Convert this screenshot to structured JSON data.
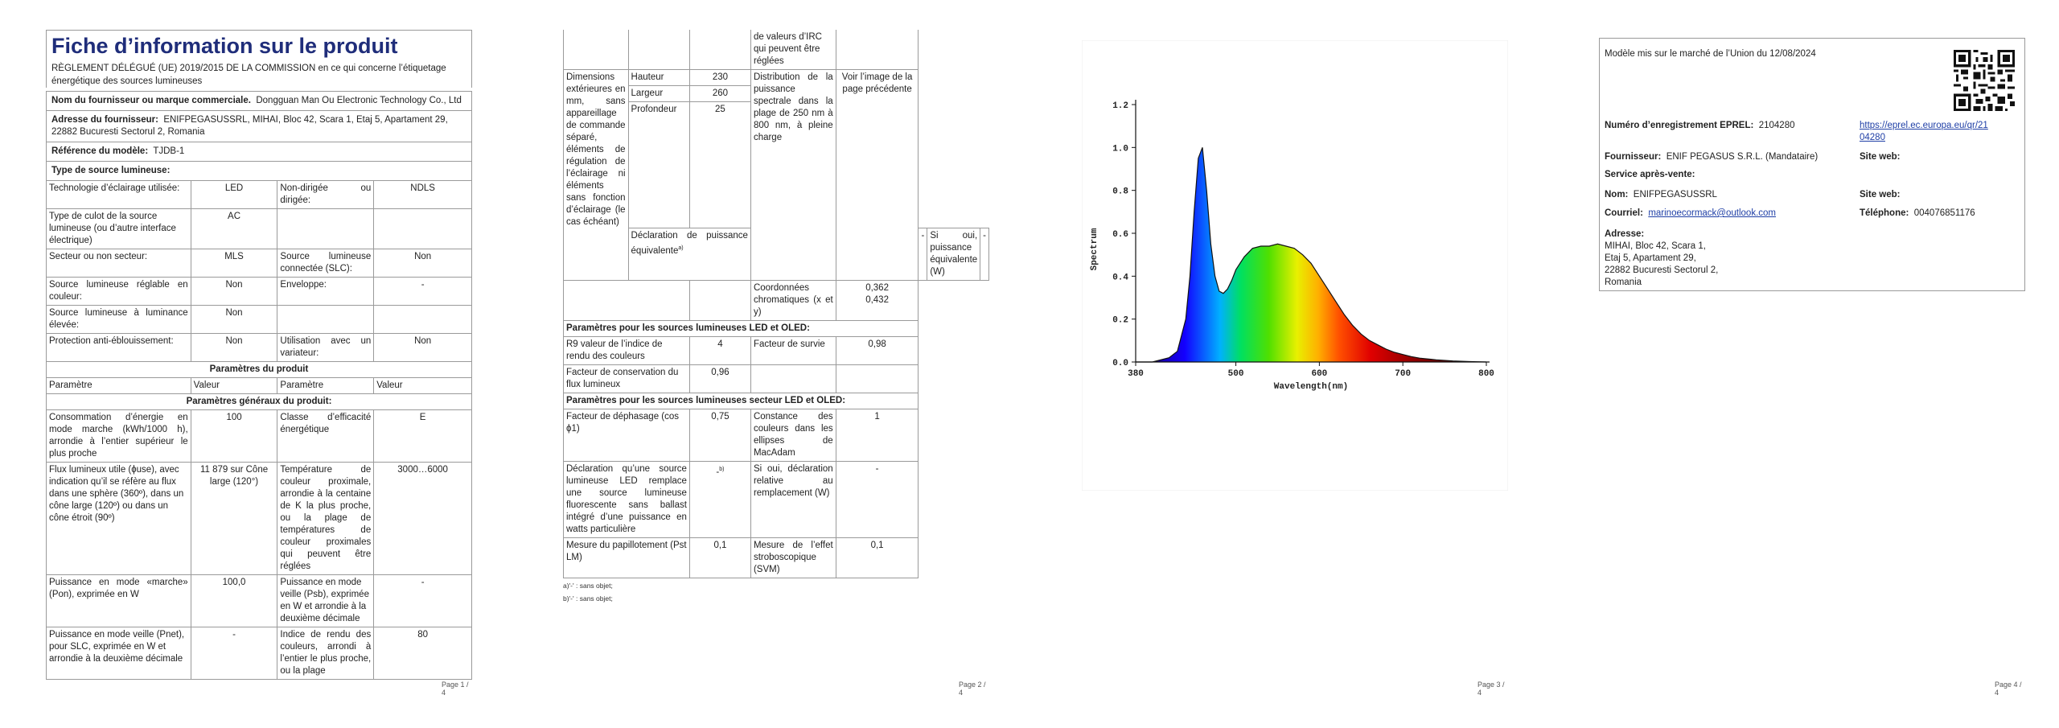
{
  "page1": {
    "title": "Fiche d’information sur le produit",
    "regulation": "RÈGLEMENT DÉLÉGUÉ (UE) 2019/2015 DE LA COMMISSION en ce qui concerne l’étiquetage énergétique des sources lumineuses",
    "supplier_label": "Nom du fournisseur ou marque commerciale.",
    "supplier_value": "Dongguan Man Ou Electronic Technology Co., Ltd",
    "address_label": "Adresse du fournisseur:",
    "address_value": "ENIFPEGASUSSRL, MIHAI, Bloc 42, Scara 1, Etaj 5, Apartament 29, 22882 Bucuresti Sectorul 2, Romania",
    "model_label": "Référence du modèle:",
    "model_value": "TJDB-1",
    "type_label": "Type de source lumineuse:",
    "rows_a": [
      [
        "Technologie d’éclairage utilisée:",
        "LED",
        "Non-dirigée ou dirigée:",
        "NDLS"
      ],
      [
        "Type de culot de la source lumineuse (ou d’autre interface électrique)",
        "AC",
        "",
        ""
      ],
      [
        "Secteur ou non secteur:",
        "MLS",
        "Source lumineuse connectée (SLC):",
        "Non"
      ],
      [
        "Source lumineuse réglable en couleur:",
        "Non",
        "Enveloppe:",
        "-"
      ],
      [
        "Source lumineuse à luminance élevée:",
        "Non",
        "",
        ""
      ],
      [
        "Protection anti-éblouissement:",
        "Non",
        "Utilisation avec un variateur:",
        "Non"
      ]
    ],
    "section_product": "Paramètres du produit",
    "col_headers": [
      "Paramètre",
      "Valeur",
      "Paramètre",
      "Valeur"
    ],
    "section_general": "Paramètres généraux du produit:",
    "rows_b": [
      [
        "Consommation d’énergie en mode marche (kWh/1000 h), arrondie à l’entier supérieur le plus proche",
        "100",
        "Classe d’efficacité énergétique",
        "E"
      ],
      [
        "Flux lumineux utile (ɸuse), avec indication qu’il se réfère au flux dans une sphère (360º), dans un cône large (120º) ou dans un cône étroit (90º)",
        "11 879 sur Cône large (120°)",
        "Température de couleur proximale, arrondie à la centaine de K la plus proche, ou la plage de températures de couleur proximales qui peuvent être réglées",
        "3000…6000"
      ],
      [
        "Puissance en mode «marche» (Pon), exprimée en W",
        "100,0",
        "Puissance en mode veille (Psb), exprimée en W et arrondie à la deuxième décimale",
        "-"
      ],
      [
        "Puissance en mode veille (Pnet), pour SLC, exprimée en W et arrondie à la deuxième décimale",
        "-",
        "Indice de rendu des couleurs, arrondi à l’entier le plus proche, ou la plage",
        "80"
      ]
    ],
    "page_number": "Page 1 / 4"
  },
  "page2": {
    "cont_text": "de valeurs d’IRC qui peuvent être réglées",
    "dims_label": "Dimensions extérieures en mm, sans appareillage de commande séparé, éléments de régulation de l’éclairage ni éléments sans fonction d’éclairage (le cas échéant)",
    "dims": [
      [
        "Hauteur",
        "230"
      ],
      [
        "Largeur",
        "260"
      ],
      [
        "Profondeur",
        "25"
      ]
    ],
    "spectral_label": "Distribution de la puissance spectrale dans la plage de 250 nm à 800 nm, à pleine charge",
    "spectral_value": "Voir l’image de la page précédente",
    "equiv_label": "Déclaration de puissance équivalente",
    "equiv_sup": "a)",
    "equiv_value": "-",
    "equiv_w_label": "Si oui, puissance équivalente (W)",
    "equiv_w_value": "-",
    "chroma_label": "Coordonnées chromatiques (x et y)",
    "chroma_value_x": "0,362",
    "chroma_value_y": "0,432",
    "section_led": "Paramètres pour les sources lumineuses LED et OLED:",
    "r9_label": "R9 valeur de l’indice de rendu des couleurs",
    "r9_value": "4",
    "survival_label": "Facteur de survie",
    "survival_value": "0,98",
    "flux_label": "Facteur de conservation du flux lumineux",
    "flux_value": "0,96",
    "section_mains": "Paramètres pour les sources lumineuses secteur LED et OLED:",
    "phase_label": "Facteur de déphasage (cos ϕ1)",
    "phase_value": "0,75",
    "macadam_label": "Constance des couleurs dans les ellipses de MacAdam",
    "macadam_value": "1",
    "fluo_label": "Déclaration qu’une source lumineuse LED remplace une source lumineuse fluorescente sans ballast intégré d’une puissance en watts particulière",
    "fluo_value": "-",
    "fluo_sup": "b)",
    "replace_label": "Si oui, déclaration relative au remplacement (W)",
    "replace_value": "-",
    "flicker_label": "Mesure du papillotement (Pst LM)",
    "flicker_value": "0,1",
    "strobo_label": "Mesure de l’effet stroboscopique (SVM)",
    "strobo_value": "0,1",
    "footnote_a": "a)'-' : sans objet;",
    "footnote_b": "b)'-' : sans objet;",
    "page_number": "Page 2 / 4"
  },
  "page3": {
    "page_number": "Page 3 / 4",
    "chart_data": {
      "type": "line",
      "xlabel": "Wavelength(nm)",
      "ylabel": "Spectrum",
      "xlim": [
        380,
        800
      ],
      "ylim": [
        0.0,
        1.2
      ],
      "x_ticks": [
        "380",
        "500",
        "600",
        "700",
        "800"
      ],
      "y_ticks": [
        "0.0",
        "0.2",
        "0.4",
        "0.6",
        "0.8",
        "1.0",
        "1.2"
      ],
      "series": [
        {
          "x": [
            380,
            400,
            420,
            430,
            440,
            445,
            450,
            455,
            460,
            465,
            470,
            475,
            480,
            485,
            490,
            495,
            500,
            510,
            520,
            530,
            540,
            550,
            560,
            570,
            580,
            590,
            600,
            610,
            620,
            630,
            640,
            650,
            660,
            670,
            680,
            690,
            700,
            710,
            720,
            740,
            760,
            780,
            800
          ],
          "y": [
            0.0,
            0.0,
            0.02,
            0.05,
            0.2,
            0.4,
            0.7,
            0.95,
            1.0,
            0.8,
            0.55,
            0.4,
            0.33,
            0.32,
            0.34,
            0.38,
            0.43,
            0.49,
            0.53,
            0.54,
            0.54,
            0.55,
            0.54,
            0.53,
            0.5,
            0.46,
            0.4,
            0.34,
            0.28,
            0.22,
            0.17,
            0.13,
            0.1,
            0.08,
            0.06,
            0.045,
            0.035,
            0.025,
            0.018,
            0.01,
            0.005,
            0.002,
            0.0
          ]
        }
      ]
    }
  },
  "page4": {
    "market_date": "Modèle mis sur le marché de l’Union du 12/08/2024",
    "eprel_label": "Numéro d’enregistrement EPREL:",
    "eprel_value": "2104280",
    "eprel_link": "https://eprel.ec.europa.eu/qr/2104280",
    "eprel_link_l1": "https://eprel.ec.europa.eu/qr/21",
    "eprel_link_l2": "04280",
    "supplier_label": "Fournisseur:",
    "supplier_value": "ENIF PEGASUS S.R.L. (Mandataire)",
    "website_label": "Site web:",
    "after_sales": "Service après-vente:",
    "name_label": "Nom:",
    "name_value": "ENIFPEGASUSSRL",
    "website2_label": "Site web:",
    "email_label": "Courriel:",
    "email_value": "marinoecormack@outlook.com",
    "phone_label": "Téléphone:",
    "phone_value": "004076851176",
    "address_label": "Adresse:",
    "address_lines": [
      "MIHAI, Bloc 42, Scara 1,",
      "Etaj 5, Apartament 29,",
      "22882 Bucuresti Sectorul 2,",
      "Romania"
    ],
    "page_number": "Page 4 / 4"
  }
}
